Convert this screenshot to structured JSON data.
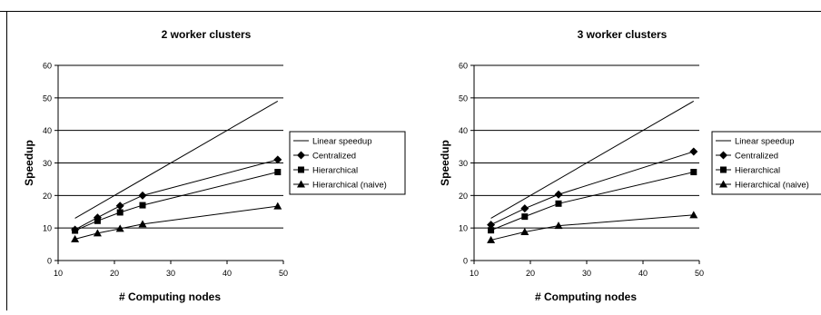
{
  "chart_data": [
    {
      "type": "line",
      "title": "2 worker clusters",
      "xlabel": "# Computing nodes",
      "ylabel": "Speedup",
      "xlim": [
        10,
        50
      ],
      "ylim": [
        0,
        60
      ],
      "xticks": [
        10,
        20,
        30,
        40,
        50
      ],
      "yticks": [
        0,
        10,
        20,
        30,
        40,
        50,
        60
      ],
      "grid": "horizontal",
      "legend": "right",
      "series": [
        {
          "name": "Linear speedup",
          "marker": "none",
          "points": [
            [
              13,
              13
            ],
            [
              49,
              49
            ]
          ]
        },
        {
          "name": "Centralized",
          "marker": "diamond",
          "points": [
            [
              13,
              9.5
            ],
            [
              17,
              13.2
            ],
            [
              21,
              16.8
            ],
            [
              25,
              20
            ],
            [
              49,
              31
            ]
          ]
        },
        {
          "name": "Hierarchical",
          "marker": "square",
          "points": [
            [
              13,
              9.2
            ],
            [
              17,
              12.2
            ],
            [
              21,
              14.8
            ],
            [
              25,
              17
            ],
            [
              49,
              27.2
            ]
          ]
        },
        {
          "name": "Hierarchical (naive)",
          "marker": "triangle",
          "points": [
            [
              13,
              6.6
            ],
            [
              17,
              8.4
            ],
            [
              21,
              9.8
            ],
            [
              25,
              11.2
            ],
            [
              49,
              16.7
            ]
          ]
        }
      ]
    },
    {
      "type": "line",
      "title": "3 worker clusters",
      "xlabel": "# Computing nodes",
      "ylabel": "Speedup",
      "xlim": [
        10,
        50
      ],
      "ylim": [
        0,
        60
      ],
      "xticks": [
        10,
        20,
        30,
        40,
        50
      ],
      "yticks": [
        0,
        10,
        20,
        30,
        40,
        50,
        60
      ],
      "grid": "horizontal",
      "legend": "right",
      "series": [
        {
          "name": "Linear speedup",
          "marker": "none",
          "points": [
            [
              13,
              13
            ],
            [
              49,
              49
            ]
          ]
        },
        {
          "name": "Centralized",
          "marker": "diamond",
          "points": [
            [
              13,
              11
            ],
            [
              19,
              16
            ],
            [
              25,
              20.3
            ],
            [
              49,
              33.5
            ]
          ]
        },
        {
          "name": "Hierarchical",
          "marker": "square",
          "points": [
            [
              13,
              9.3
            ],
            [
              19,
              13.5
            ],
            [
              25,
              17.5
            ],
            [
              49,
              27.2
            ]
          ]
        },
        {
          "name": "Hierarchical (naive)",
          "marker": "triangle",
          "points": [
            [
              13,
              6.3
            ],
            [
              19,
              8.8
            ],
            [
              25,
              10.7
            ],
            [
              49,
              14
            ]
          ]
        }
      ]
    }
  ]
}
